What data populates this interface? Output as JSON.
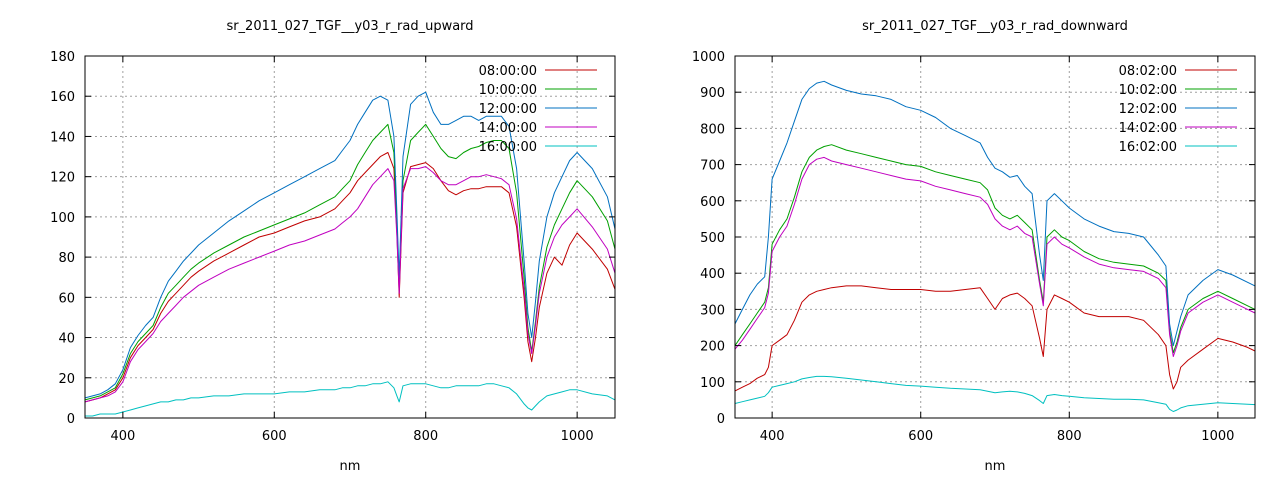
{
  "chart_data": [
    {
      "type": "line",
      "title": "sr_2011_027_TGF__y03_r_rad_upward",
      "xlabel": "nm",
      "ylabel": "",
      "xlim": [
        350,
        1050
      ],
      "ylim": [
        0,
        180
      ],
      "xticks": [
        400,
        600,
        800,
        1000
      ],
      "yticks": [
        0,
        20,
        40,
        60,
        80,
        100,
        120,
        140,
        160,
        180
      ],
      "grid": true,
      "legend": "top-right",
      "x": [
        350,
        360,
        370,
        380,
        390,
        400,
        410,
        420,
        430,
        440,
        450,
        460,
        470,
        480,
        490,
        500,
        520,
        540,
        560,
        580,
        600,
        620,
        640,
        660,
        680,
        690,
        700,
        710,
        720,
        730,
        740,
        750,
        758,
        762,
        765,
        770,
        780,
        790,
        800,
        810,
        820,
        830,
        840,
        850,
        860,
        870,
        880,
        890,
        900,
        910,
        920,
        930,
        935,
        940,
        945,
        950,
        960,
        970,
        980,
        990,
        1000,
        1020,
        1040,
        1050
      ],
      "series": [
        {
          "name": "08:00:00",
          "color": "#c00000",
          "values": [
            8,
            9,
            10,
            12,
            14,
            20,
            30,
            36,
            40,
            44,
            52,
            58,
            62,
            66,
            70,
            73,
            78,
            82,
            86,
            90,
            92,
            95,
            98,
            100,
            104,
            108,
            112,
            118,
            122,
            126,
            130,
            132,
            124,
            92,
            60,
            112,
            125,
            126,
            127,
            124,
            118,
            113,
            111,
            113,
            114,
            114,
            115,
            115,
            115,
            112,
            95,
            60,
            38,
            28,
            40,
            55,
            72,
            80,
            76,
            86,
            92,
            84,
            74,
            64
          ]
        },
        {
          "name": "10:00:00",
          "color": "#00a000",
          "values": [
            9,
            10,
            11,
            13,
            15,
            22,
            32,
            38,
            42,
            46,
            55,
            62,
            66,
            70,
            74,
            77,
            82,
            86,
            90,
            93,
            96,
            99,
            102,
            106,
            110,
            114,
            118,
            126,
            132,
            138,
            142,
            146,
            132,
            96,
            66,
            118,
            138,
            142,
            146,
            140,
            134,
            130,
            129,
            132,
            134,
            135,
            137,
            138,
            138,
            134,
            112,
            70,
            45,
            33,
            48,
            65,
            85,
            96,
            104,
            112,
            118,
            110,
            98,
            84
          ]
        },
        {
          "name": "12:00:00",
          "color": "#0070c0",
          "values": [
            10,
            11,
            12,
            14,
            17,
            24,
            35,
            41,
            46,
            50,
            60,
            68,
            73,
            78,
            82,
            86,
            92,
            98,
            103,
            108,
            112,
            116,
            120,
            124,
            128,
            133,
            138,
            146,
            152,
            158,
            160,
            158,
            140,
            102,
            70,
            130,
            156,
            160,
            162,
            152,
            146,
            146,
            148,
            150,
            150,
            148,
            150,
            150,
            150,
            145,
            124,
            78,
            52,
            40,
            58,
            78,
            100,
            112,
            120,
            128,
            132,
            124,
            110,
            94
          ]
        },
        {
          "name": "14:00:00",
          "color": "#c000c0",
          "values": [
            8,
            9,
            10,
            11,
            13,
            18,
            28,
            34,
            38,
            42,
            48,
            52,
            56,
            60,
            63,
            66,
            70,
            74,
            77,
            80,
            83,
            86,
            88,
            91,
            94,
            97,
            100,
            104,
            110,
            116,
            120,
            124,
            118,
            90,
            62,
            114,
            124,
            124,
            125,
            122,
            118,
            116,
            116,
            118,
            120,
            120,
            121,
            120,
            119,
            116,
            99,
            64,
            42,
            32,
            46,
            62,
            80,
            90,
            96,
            100,
            104,
            95,
            84,
            72
          ]
        },
        {
          "name": "16:00:00",
          "color": "#00c0c0",
          "values": [
            1,
            1,
            2,
            2,
            2,
            3,
            4,
            5,
            6,
            7,
            8,
            8,
            9,
            9,
            10,
            10,
            11,
            11,
            12,
            12,
            12,
            13,
            13,
            14,
            14,
            15,
            15,
            16,
            16,
            17,
            17,
            18,
            15,
            11,
            8,
            16,
            17,
            17,
            17,
            16,
            15,
            15,
            16,
            16,
            16,
            16,
            17,
            17,
            16,
            15,
            12,
            7,
            5,
            4,
            6,
            8,
            11,
            12,
            13,
            14,
            14,
            12,
            11,
            9
          ]
        }
      ]
    },
    {
      "type": "line",
      "title": "sr_2011_027_TGF__y03_r_rad_downward",
      "xlabel": "nm",
      "ylabel": "",
      "xlim": [
        350,
        1050
      ],
      "ylim": [
        0,
        1000
      ],
      "xticks": [
        400,
        600,
        800,
        1000
      ],
      "yticks": [
        0,
        100,
        200,
        300,
        400,
        500,
        600,
        700,
        800,
        900,
        1000
      ],
      "grid": true,
      "legend": "top-right",
      "x": [
        350,
        360,
        370,
        380,
        390,
        395,
        400,
        410,
        420,
        430,
        440,
        450,
        460,
        470,
        480,
        500,
        520,
        540,
        560,
        580,
        600,
        620,
        640,
        660,
        680,
        690,
        700,
        710,
        720,
        730,
        740,
        750,
        760,
        765,
        770,
        780,
        790,
        800,
        820,
        840,
        860,
        880,
        900,
        920,
        930,
        935,
        940,
        945,
        950,
        960,
        980,
        1000,
        1020,
        1040,
        1050
      ],
      "series": [
        {
          "name": "08:02:00",
          "color": "#c00000",
          "values": [
            75,
            85,
            95,
            110,
            120,
            140,
            200,
            215,
            230,
            270,
            320,
            340,
            350,
            355,
            360,
            365,
            365,
            360,
            355,
            355,
            355,
            350,
            350,
            355,
            360,
            330,
            300,
            330,
            340,
            345,
            330,
            310,
            220,
            170,
            300,
            340,
            330,
            320,
            290,
            280,
            280,
            280,
            270,
            230,
            200,
            120,
            80,
            100,
            140,
            160,
            190,
            220,
            210,
            195,
            185
          ]
        },
        {
          "name": "10:02:00",
          "color": "#00a000",
          "values": [
            200,
            230,
            260,
            290,
            320,
            360,
            480,
            520,
            550,
            610,
            680,
            720,
            740,
            750,
            755,
            740,
            730,
            720,
            710,
            700,
            695,
            680,
            670,
            660,
            650,
            630,
            580,
            560,
            550,
            560,
            540,
            520,
            380,
            320,
            500,
            520,
            500,
            490,
            460,
            440,
            430,
            425,
            420,
            400,
            380,
            240,
            180,
            210,
            250,
            300,
            330,
            350,
            330,
            310,
            300
          ]
        },
        {
          "name": "12:02:00",
          "color": "#0070c0",
          "values": [
            260,
            300,
            340,
            370,
            390,
            500,
            660,
            710,
            760,
            820,
            880,
            910,
            925,
            930,
            920,
            905,
            895,
            890,
            880,
            860,
            850,
            830,
            800,
            780,
            760,
            720,
            690,
            680,
            665,
            670,
            640,
            620,
            450,
            380,
            600,
            620,
            600,
            580,
            550,
            530,
            515,
            510,
            500,
            450,
            420,
            260,
            200,
            240,
            280,
            340,
            380,
            410,
            395,
            375,
            365
          ]
        },
        {
          "name": "14:02:00",
          "color": "#c000c0",
          "values": [
            190,
            215,
            245,
            275,
            305,
            345,
            460,
            500,
            530,
            590,
            660,
            700,
            715,
            720,
            710,
            700,
            690,
            680,
            670,
            660,
            655,
            640,
            630,
            620,
            610,
            590,
            550,
            530,
            520,
            530,
            510,
            500,
            370,
            310,
            480,
            500,
            480,
            470,
            445,
            425,
            415,
            410,
            405,
            385,
            360,
            230,
            170,
            200,
            240,
            290,
            320,
            340,
            320,
            300,
            290
          ]
        },
        {
          "name": "16:02:00",
          "color": "#00c0c0",
          "values": [
            40,
            45,
            50,
            55,
            60,
            70,
            85,
            90,
            95,
            100,
            108,
            112,
            115,
            115,
            114,
            110,
            105,
            100,
            95,
            90,
            88,
            85,
            82,
            80,
            78,
            74,
            70,
            72,
            74,
            72,
            68,
            62,
            48,
            40,
            62,
            65,
            62,
            60,
            56,
            54,
            52,
            52,
            50,
            42,
            38,
            24,
            18,
            22,
            28,
            34,
            38,
            42,
            40,
            38,
            37
          ]
        }
      ]
    }
  ]
}
